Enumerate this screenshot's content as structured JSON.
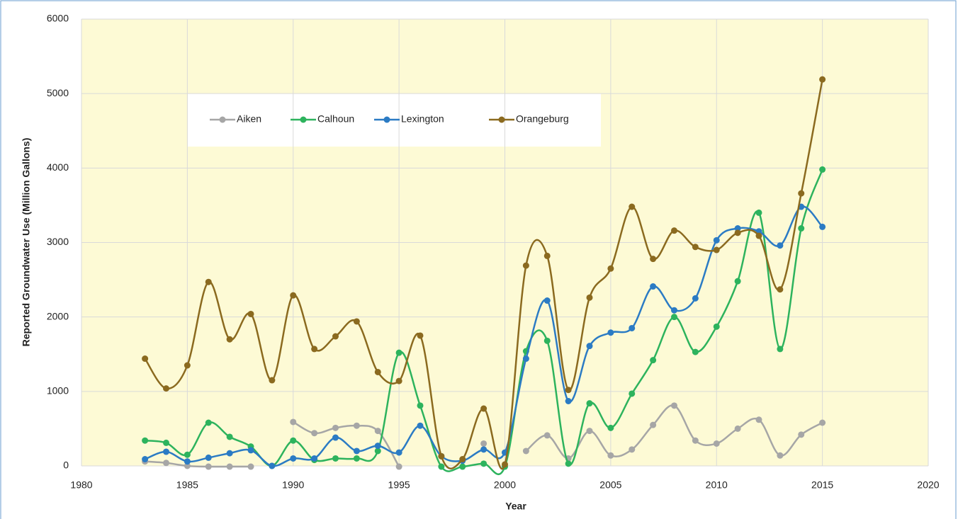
{
  "chart_data": {
    "type": "line",
    "x_label": "Year",
    "y_label": "Reported Groundwater Use (Million Gallons)",
    "x": [
      1983,
      1984,
      1985,
      1986,
      1987,
      1988,
      1989,
      1990,
      1991,
      1992,
      1993,
      1994,
      1995,
      1996,
      1997,
      1998,
      1999,
      2000,
      2001,
      2002,
      2003,
      2004,
      2005,
      2006,
      2007,
      2008,
      2009,
      2010,
      2011,
      2012,
      2013,
      2014,
      2015
    ],
    "series": [
      {
        "name": "Aiken",
        "color": "#a6a6a6",
        "values": [
          60,
          40,
          0,
          -10,
          -10,
          -10,
          null,
          590,
          440,
          510,
          540,
          470,
          -10,
          null,
          null,
          null,
          300,
          null,
          200,
          410,
          100,
          470,
          140,
          220,
          550,
          810,
          340,
          300,
          500,
          620,
          140,
          420,
          580
        ]
      },
      {
        "name": "Calhoun",
        "color": "#2db35d",
        "values": [
          340,
          310,
          150,
          580,
          390,
          260,
          0,
          340,
          80,
          100,
          100,
          200,
          1520,
          810,
          -10,
          -10,
          30,
          -10,
          1540,
          1680,
          30,
          840,
          510,
          970,
          1420,
          2000,
          1530,
          1870,
          2480,
          3400,
          1570,
          3190,
          3980
        ]
      },
      {
        "name": "Lexington",
        "color": "#2b7bc4",
        "values": [
          90,
          190,
          60,
          110,
          170,
          210,
          0,
          100,
          100,
          380,
          200,
          270,
          180,
          540,
          130,
          70,
          220,
          180,
          1440,
          2220,
          870,
          1610,
          1790,
          1850,
          2410,
          2090,
          2250,
          3030,
          3190,
          3150,
          2960,
          3480,
          3210
        ]
      },
      {
        "name": "Orangeburg",
        "color": "#8b6a1f",
        "values": [
          1440,
          1040,
          1350,
          2470,
          1700,
          2040,
          1150,
          2290,
          1570,
          1740,
          1940,
          1260,
          1140,
          1750,
          130,
          90,
          770,
          20,
          2690,
          2820,
          1020,
          2260,
          2650,
          3480,
          2780,
          3160,
          2940,
          2900,
          3130,
          3090,
          2370,
          3660,
          5190
        ]
      }
    ],
    "xlim": [
      1980,
      2020
    ],
    "xticks": [
      1980,
      1985,
      1990,
      1995,
      2000,
      2005,
      2010,
      2015,
      2020
    ],
    "ylim": [
      0,
      6000
    ],
    "yticks": [
      0,
      1000,
      2000,
      3000,
      4000,
      5000,
      6000
    ],
    "grid": true,
    "smooth": true,
    "legend": "top-left"
  }
}
